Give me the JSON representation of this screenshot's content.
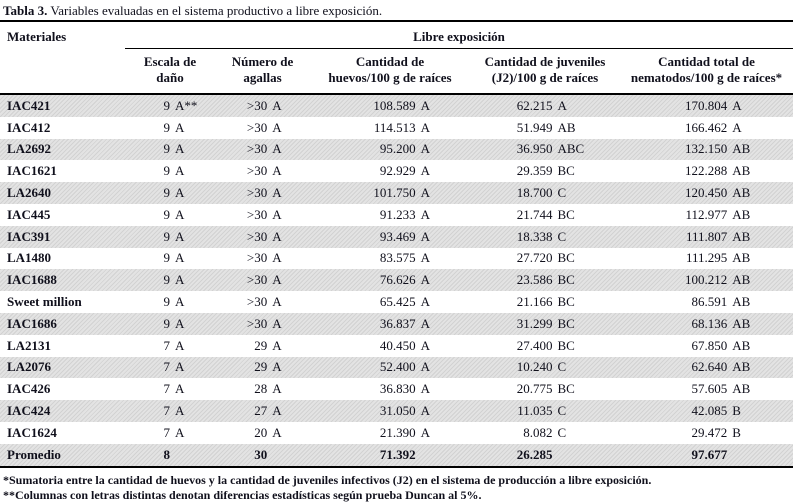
{
  "title": {
    "label": "Tabla 3.",
    "text": " Variables evaluadas en el sistema productivo a libre exposición."
  },
  "table": {
    "col1_header": "Materiales",
    "group_header": "Libre exposición",
    "columns": [
      {
        "line1": "Escala de",
        "line2": "daño"
      },
      {
        "line1": "Número de",
        "line2": "agallas"
      },
      {
        "line1": "Cantidad de",
        "line2": "huevos/100 g de raíces"
      },
      {
        "line1": "Cantidad de juveniles",
        "line2": "(J2)/100 g de raíces"
      },
      {
        "line1": "Cantidad total de",
        "line2": "nematodos/100 g de raíces*"
      }
    ],
    "rows": [
      {
        "material": "IAC421",
        "cells": [
          [
            "9",
            "A**"
          ],
          [
            ">30",
            "A"
          ],
          [
            "108.589",
            "A"
          ],
          [
            "62.215",
            "A"
          ],
          [
            "170.804",
            "A"
          ]
        ]
      },
      {
        "material": "IAC412",
        "cells": [
          [
            "9",
            "A"
          ],
          [
            ">30",
            "A"
          ],
          [
            "114.513",
            "A"
          ],
          [
            "51.949",
            "AB"
          ],
          [
            "166.462",
            "A"
          ]
        ]
      },
      {
        "material": "LA2692",
        "cells": [
          [
            "9",
            "A"
          ],
          [
            ">30",
            "A"
          ],
          [
            "95.200",
            "A"
          ],
          [
            "36.950",
            "ABC"
          ],
          [
            "132.150",
            "AB"
          ]
        ]
      },
      {
        "material": "IAC1621",
        "cells": [
          [
            "9",
            "A"
          ],
          [
            ">30",
            "A"
          ],
          [
            "92.929",
            "A"
          ],
          [
            "29.359",
            "BC"
          ],
          [
            "122.288",
            "AB"
          ]
        ]
      },
      {
        "material": "LA2640",
        "cells": [
          [
            "9",
            "A"
          ],
          [
            ">30",
            "A"
          ],
          [
            "101.750",
            "A"
          ],
          [
            "18.700",
            "C"
          ],
          [
            "120.450",
            "AB"
          ]
        ]
      },
      {
        "material": "IAC445",
        "cells": [
          [
            "9",
            "A"
          ],
          [
            ">30",
            "A"
          ],
          [
            "91.233",
            "A"
          ],
          [
            "21.744",
            "BC"
          ],
          [
            "112.977",
            "AB"
          ]
        ]
      },
      {
        "material": "IAC391",
        "cells": [
          [
            "9",
            "A"
          ],
          [
            ">30",
            "A"
          ],
          [
            "93.469",
            "A"
          ],
          [
            "18.338",
            "C"
          ],
          [
            "111.807",
            "AB"
          ]
        ]
      },
      {
        "material": "LA1480",
        "cells": [
          [
            "9",
            "A"
          ],
          [
            ">30",
            "A"
          ],
          [
            "83.575",
            "A"
          ],
          [
            "27.720",
            "BC"
          ],
          [
            "111.295",
            "AB"
          ]
        ]
      },
      {
        "material": "IAC1688",
        "cells": [
          [
            "9",
            "A"
          ],
          [
            ">30",
            "A"
          ],
          [
            "76.626",
            "A"
          ],
          [
            "23.586",
            "BC"
          ],
          [
            "100.212",
            "AB"
          ]
        ]
      },
      {
        "material": "Sweet million",
        "cells": [
          [
            "9",
            "A"
          ],
          [
            ">30",
            "A"
          ],
          [
            "65.425",
            "A"
          ],
          [
            "21.166",
            "BC"
          ],
          [
            "86.591",
            "AB"
          ]
        ]
      },
      {
        "material": "IAC1686",
        "cells": [
          [
            "9",
            "A"
          ],
          [
            ">30",
            "A"
          ],
          [
            "36.837",
            "A"
          ],
          [
            "31.299",
            "BC"
          ],
          [
            "68.136",
            "AB"
          ]
        ]
      },
      {
        "material": "LA2131",
        "cells": [
          [
            "7",
            "A"
          ],
          [
            "29",
            "A"
          ],
          [
            "40.450",
            "A"
          ],
          [
            "27.400",
            "BC"
          ],
          [
            "67.850",
            "AB"
          ]
        ]
      },
      {
        "material": "LA2076",
        "cells": [
          [
            "7",
            "A"
          ],
          [
            "29",
            "A"
          ],
          [
            "52.400",
            "A"
          ],
          [
            "10.240",
            "C"
          ],
          [
            "62.640",
            "AB"
          ]
        ]
      },
      {
        "material": "IAC426",
        "cells": [
          [
            "7",
            "A"
          ],
          [
            "28",
            "A"
          ],
          [
            "36.830",
            "A"
          ],
          [
            "20.775",
            "BC"
          ],
          [
            "57.605",
            "AB"
          ]
        ]
      },
      {
        "material": "IAC424",
        "cells": [
          [
            "7",
            "A"
          ],
          [
            "27",
            "A"
          ],
          [
            "31.050",
            "A"
          ],
          [
            "11.035",
            "C"
          ],
          [
            "42.085",
            "B"
          ]
        ]
      },
      {
        "material": "IAC1624",
        "cells": [
          [
            "7",
            "A"
          ],
          [
            "20",
            "A"
          ],
          [
            "21.390",
            "A"
          ],
          [
            "8.082",
            "C"
          ],
          [
            "29.472",
            "B"
          ]
        ]
      },
      {
        "material": "Promedio",
        "is_summary": true,
        "cells": [
          [
            "8",
            ""
          ],
          [
            "30",
            ""
          ],
          [
            "71.392",
            ""
          ],
          [
            "26.285",
            ""
          ],
          [
            "97.677",
            ""
          ]
        ]
      }
    ]
  },
  "footnotes": [
    "*Sumatoria entre la cantidad de huevos y la cantidad de juveniles infectivos (J2) en el sistema de producción a libre exposición.",
    "**Columnas con letras distintas denotan diferencias estadísticas según prueba Duncan al 5%."
  ]
}
